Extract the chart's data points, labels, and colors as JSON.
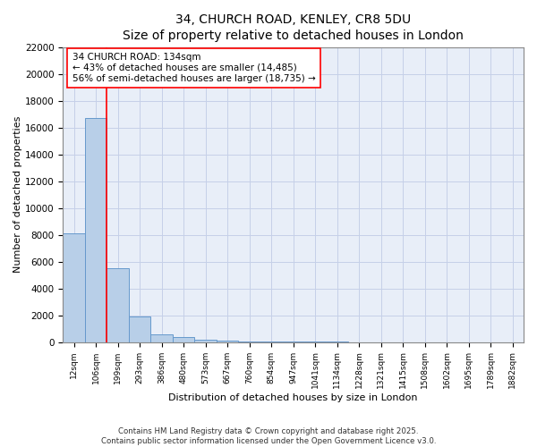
{
  "title": "34, CHURCH ROAD, KENLEY, CR8 5DU",
  "subtitle": "Size of property relative to detached houses in London",
  "xlabel": "Distribution of detached houses by size in London",
  "ylabel": "Number of detached properties",
  "bar_labels": [
    "12sqm",
    "106sqm",
    "199sqm",
    "293sqm",
    "386sqm",
    "480sqm",
    "573sqm",
    "667sqm",
    "760sqm",
    "854sqm",
    "947sqm",
    "1041sqm",
    "1134sqm",
    "1228sqm",
    "1321sqm",
    "1415sqm",
    "1508sqm",
    "1602sqm",
    "1695sqm",
    "1789sqm",
    "1882sqm"
  ],
  "bar_values": [
    8100,
    16700,
    5500,
    1900,
    600,
    350,
    170,
    90,
    50,
    30,
    15,
    10,
    7,
    5,
    3,
    2,
    1,
    1,
    1,
    1,
    1
  ],
  "bar_color": "#b8cfe8",
  "bar_edge_color": "#6699cc",
  "vline_x": 1.48,
  "vline_color": "red",
  "annotation_text": "34 CHURCH ROAD: 134sqm\n← 43% of detached houses are smaller (14,485)\n56% of semi-detached houses are larger (18,735) →",
  "annotation_box_color": "white",
  "annotation_box_edge": "red",
  "ylim": [
    0,
    22000
  ],
  "yticks": [
    0,
    2000,
    4000,
    6000,
    8000,
    10000,
    12000,
    14000,
    16000,
    18000,
    20000,
    22000
  ],
  "background_color": "#e8eef8",
  "grid_color": "#c5d0e8",
  "footer_text": "Contains HM Land Registry data © Crown copyright and database right 2025.\nContains public sector information licensed under the Open Government Licence v3.0.",
  "title_fontsize": 10,
  "annot_fontsize": 7.5,
  "ylabel_fontsize": 8,
  "xlabel_fontsize": 8,
  "ytick_fontsize": 7.5,
  "xtick_fontsize": 6.5
}
